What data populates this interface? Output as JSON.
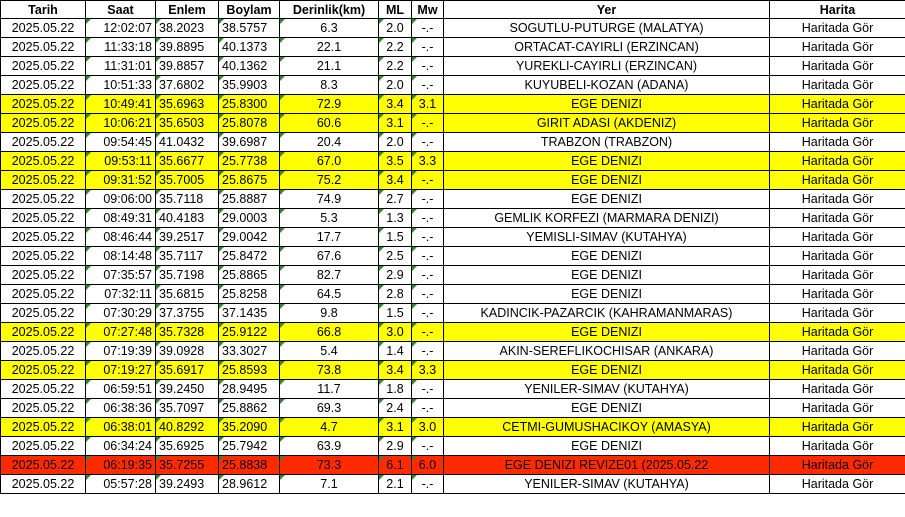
{
  "columns": [
    "Tarih",
    "Saat",
    "Enlem",
    "Boylam",
    "Derinlik(km)",
    "ML",
    "Mw",
    "Yer",
    "Harita"
  ],
  "colors": {
    "yellow": "#ffff00",
    "red": "#ff2a00",
    "triangle": "#2e8b2e"
  },
  "rows": [
    {
      "date": "2025.05.22",
      "time": "12:02:07",
      "lat": "38.2023",
      "lon": "38.5757",
      "depth": "6.3",
      "ml": "2.0",
      "mw": "-.-",
      "place": "SOGUTLU-PUTURGE (MALATYA)",
      "map": "Haritada Gör",
      "highlight": "none"
    },
    {
      "date": "2025.05.22",
      "time": "11:33:18",
      "lat": "39.8895",
      "lon": "40.1373",
      "depth": "22.1",
      "ml": "2.2",
      "mw": "-.-",
      "place": "ORTACAT-CAYIRLI (ERZINCAN)",
      "map": "Haritada Gör",
      "highlight": "none"
    },
    {
      "date": "2025.05.22",
      "time": "11:31:01",
      "lat": "39.8857",
      "lon": "40.1362",
      "depth": "21.1",
      "ml": "2.2",
      "mw": "-.-",
      "place": "YUREKLI-CAYIRLI (ERZINCAN)",
      "map": "Haritada Gör",
      "highlight": "none"
    },
    {
      "date": "2025.05.22",
      "time": "10:51:33",
      "lat": "37.6802",
      "lon": "35.9903",
      "depth": "8.3",
      "ml": "2.0",
      "mw": "-.-",
      "place": "KUYUBELI-KOZAN (ADANA)",
      "map": "Haritada Gör",
      "highlight": "none"
    },
    {
      "date": "2025.05.22",
      "time": "10:49:41",
      "lat": "35.6963",
      "lon": "25.8300",
      "depth": "72.9",
      "ml": "3.4",
      "mw": "3.1",
      "place": "EGE DENIZI",
      "map": "Haritada Gör",
      "highlight": "yellow"
    },
    {
      "date": "2025.05.22",
      "time": "10:06:21",
      "lat": "35.6503",
      "lon": "25.8078",
      "depth": "60.6",
      "ml": "3.1",
      "mw": "-.-",
      "place": "GIRIT ADASI (AKDENIZ)",
      "map": "Haritada Gör",
      "highlight": "yellow"
    },
    {
      "date": "2025.05.22",
      "time": "09:54:45",
      "lat": "41.0432",
      "lon": "39.6987",
      "depth": "20.4",
      "ml": "2.0",
      "mw": "-.-",
      "place": "TRABZON (TRABZON)",
      "map": "Haritada Gör",
      "highlight": "none"
    },
    {
      "date": "2025.05.22",
      "time": "09:53:11",
      "lat": "35.6677",
      "lon": "25.7738",
      "depth": "67.0",
      "ml": "3.5",
      "mw": "3.3",
      "place": "EGE DENIZI",
      "map": "Haritada Gör",
      "highlight": "yellow"
    },
    {
      "date": "2025.05.22",
      "time": "09:31:52",
      "lat": "35.7005",
      "lon": "25.8675",
      "depth": "75.2",
      "ml": "3.4",
      "mw": "-.-",
      "place": "EGE DENIZI",
      "map": "Haritada Gör",
      "highlight": "yellow"
    },
    {
      "date": "2025.05.22",
      "time": "09:06:00",
      "lat": "35.7118",
      "lon": "25.8887",
      "depth": "74.9",
      "ml": "2.7",
      "mw": "-.-",
      "place": "EGE DENIZI",
      "map": "Haritada Gör",
      "highlight": "none"
    },
    {
      "date": "2025.05.22",
      "time": "08:49:31",
      "lat": "40.4183",
      "lon": "29.0003",
      "depth": "5.3",
      "ml": "1.3",
      "mw": "-.-",
      "place": "GEMLIK KORFEZI (MARMARA DENIZI)",
      "map": "Haritada Gör",
      "highlight": "none"
    },
    {
      "date": "2025.05.22",
      "time": "08:46:44",
      "lat": "39.2517",
      "lon": "29.0042",
      "depth": "17.7",
      "ml": "1.5",
      "mw": "-.-",
      "place": "YEMISLI-SIMAV (KUTAHYA)",
      "map": "Haritada Gör",
      "highlight": "none"
    },
    {
      "date": "2025.05.22",
      "time": "08:14:48",
      "lat": "35.7117",
      "lon": "25.8472",
      "depth": "67.6",
      "ml": "2.5",
      "mw": "-.-",
      "place": "EGE DENIZI",
      "map": "Haritada Gör",
      "highlight": "none"
    },
    {
      "date": "2025.05.22",
      "time": "07:35:57",
      "lat": "35.7198",
      "lon": "25.8865",
      "depth": "82.7",
      "ml": "2.9",
      "mw": "-.-",
      "place": "EGE DENIZI",
      "map": "Haritada Gör",
      "highlight": "none"
    },
    {
      "date": "2025.05.22",
      "time": "07:32:11",
      "lat": "35.6815",
      "lon": "25.8258",
      "depth": "64.5",
      "ml": "2.8",
      "mw": "-.-",
      "place": "EGE DENIZI",
      "map": "Haritada Gör",
      "highlight": "none"
    },
    {
      "date": "2025.05.22",
      "time": "07:30:29",
      "lat": "37.3755",
      "lon": "37.1435",
      "depth": "9.8",
      "ml": "1.5",
      "mw": "-.-",
      "place": "KADINCIK-PAZARCIK (KAHRAMANMARAS)",
      "map": "Haritada Gör",
      "highlight": "none"
    },
    {
      "date": "2025.05.22",
      "time": "07:27:48",
      "lat": "35.7328",
      "lon": "25.9122",
      "depth": "66.8",
      "ml": "3.0",
      "mw": "-.-",
      "place": "EGE DENIZI",
      "map": "Haritada Gör",
      "highlight": "yellow"
    },
    {
      "date": "2025.05.22",
      "time": "07:19:39",
      "lat": "39.0928",
      "lon": "33.3027",
      "depth": "5.4",
      "ml": "1.4",
      "mw": "-.-",
      "place": "AKIN-SEREFLIKOCHISAR (ANKARA)",
      "map": "Haritada Gör",
      "highlight": "none"
    },
    {
      "date": "2025.05.22",
      "time": "07:19:27",
      "lat": "35.6917",
      "lon": "25.8593",
      "depth": "73.8",
      "ml": "3.4",
      "mw": "3.3",
      "place": "EGE DENIZI",
      "map": "Haritada Gör",
      "highlight": "yellow"
    },
    {
      "date": "2025.05.22",
      "time": "06:59:51",
      "lat": "39.2450",
      "lon": "28.9495",
      "depth": "11.7",
      "ml": "1.8",
      "mw": "-.-",
      "place": "YENILER-SIMAV (KUTAHYA)",
      "map": "Haritada Gör",
      "highlight": "none"
    },
    {
      "date": "2025.05.22",
      "time": "06:38:36",
      "lat": "35.7097",
      "lon": "25.8862",
      "depth": "69.3",
      "ml": "2.4",
      "mw": "-.-",
      "place": "EGE DENIZI",
      "map": "Haritada Gör",
      "highlight": "none"
    },
    {
      "date": "2025.05.22",
      "time": "06:38:01",
      "lat": "40.8292",
      "lon": "35.2090",
      "depth": "4.7",
      "ml": "3.1",
      "mw": "3.0",
      "place": "CETMI-GUMUSHACIKOY (AMASYA)",
      "map": "Haritada Gör",
      "highlight": "yellow"
    },
    {
      "date": "2025.05.22",
      "time": "06:34:24",
      "lat": "35.6925",
      "lon": "25.7942",
      "depth": "63.9",
      "ml": "2.9",
      "mw": "-.-",
      "place": "EGE DENIZI",
      "map": "Haritada Gör",
      "highlight": "none"
    },
    {
      "date": "2025.05.22",
      "time": "06:19:35",
      "lat": "35.7255",
      "lon": "25.8838",
      "depth": "73.3",
      "ml": "6.1",
      "mw": "6.0",
      "place": "EGE DENIZI REVIZE01 (2025.05.22",
      "map": "Haritada Gör",
      "highlight": "red"
    },
    {
      "date": "2025.05.22",
      "time": "05:57:28",
      "lat": "39.2493",
      "lon": "28.9612",
      "depth": "7.1",
      "ml": "2.1",
      "mw": "-.-",
      "place": "YENILER-SIMAV (KUTAHYA)",
      "map": "Haritada Gör",
      "highlight": "none"
    }
  ]
}
